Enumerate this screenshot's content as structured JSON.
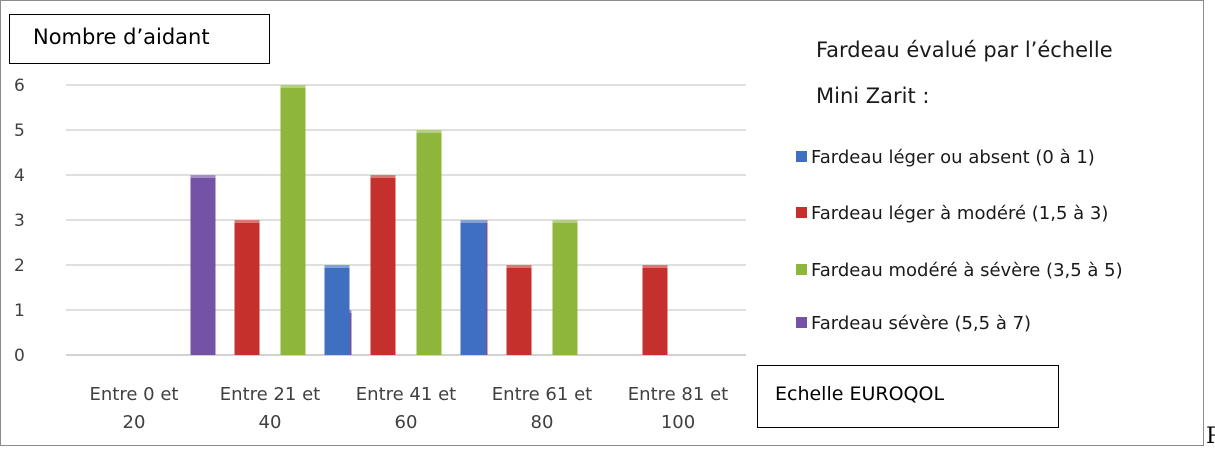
{
  "chart_data": {
    "type": "bar",
    "ylabel": "Nombre d’aidant",
    "xlabel": "Echelle EUROQOL",
    "legend_title_lines": [
      "Fardeau évalué par l’échelle",
      "Mini Zarit :"
    ],
    "categories": [
      [
        "Entre 0 et",
        "20"
      ],
      [
        "Entre 21 et",
        "40"
      ],
      [
        "Entre 41 et",
        "60"
      ],
      [
        "Entre 61 et",
        "80"
      ],
      [
        "Entre 81 et",
        "100"
      ]
    ],
    "series": [
      {
        "name": "Fardeau léger ou absent (0 à 1)",
        "color": "#3f6fc1",
        "values": [
          0,
          0,
          2,
          3,
          0
        ]
      },
      {
        "name": "Fardeau léger à modéré (1,5 à 3)",
        "color": "#c5302c",
        "values": [
          0,
          3,
          4,
          2,
          2
        ]
      },
      {
        "name": "Fardeau modéré à sévère (3,5 à 5)",
        "color": "#8db63a",
        "values": [
          0,
          6,
          5,
          3,
          0
        ]
      },
      {
        "name": "Fardeau sévère (5,5 à 7)",
        "color": "#7453a6",
        "values": [
          4,
          1,
          3,
          0,
          0
        ]
      }
    ],
    "yticks": [
      "0",
      "1",
      "2",
      "3",
      "4",
      "5",
      "6"
    ],
    "ylim": [
      0,
      6
    ],
    "grid": true,
    "legend_position": "right"
  },
  "trailing_text": "P"
}
